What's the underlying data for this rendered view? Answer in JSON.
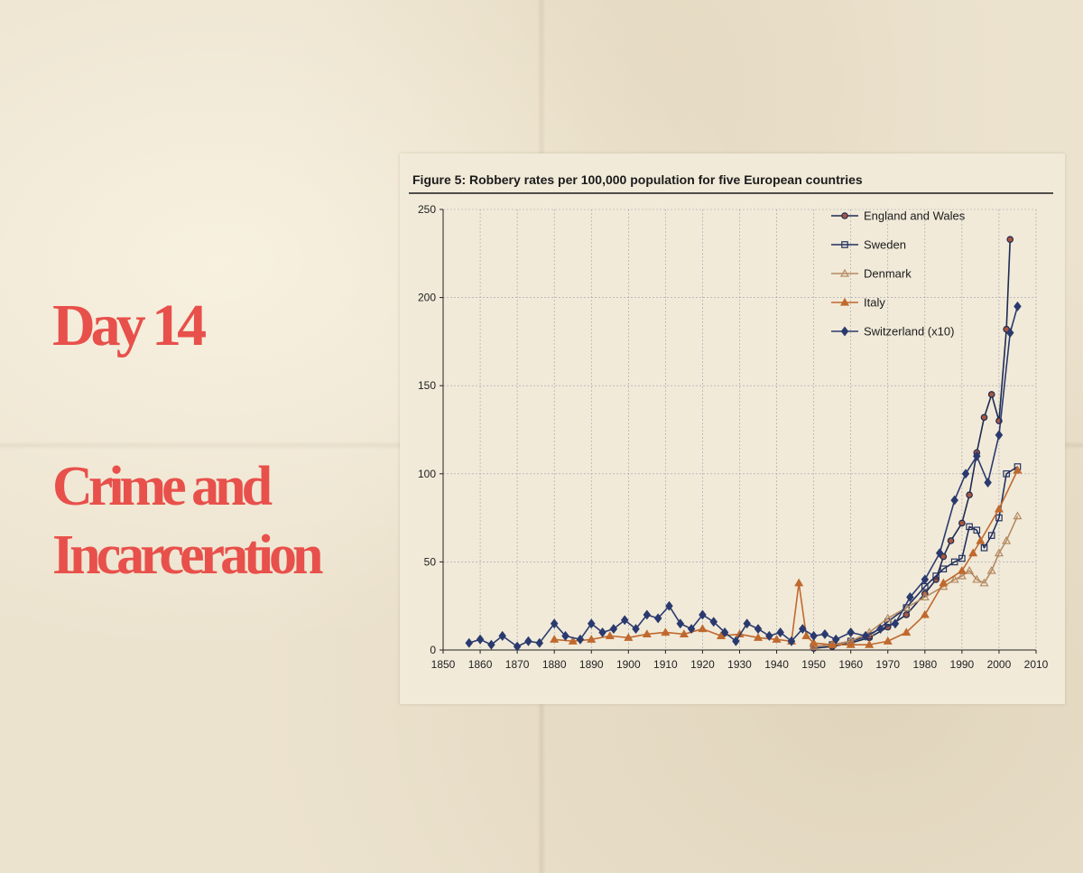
{
  "page": {
    "heading_day": "Day 14",
    "heading_topic_line1": "Crime and",
    "heading_topic_line2": "Incarceration"
  },
  "colors": {
    "heading": "#e8504b",
    "england": "#1d2a52",
    "sweden": "#23305e",
    "denmark": "#b58a62",
    "italy": "#c0692e",
    "switzerland": "#2b3a6e",
    "marker_england": "#a8563f"
  },
  "chart_data": {
    "type": "line",
    "title": "Figure 5: Robbery rates per 100,000 population for five European countries",
    "xlabel": "",
    "ylabel": "",
    "xlim": [
      1850,
      2010
    ],
    "ylim": [
      0,
      250
    ],
    "xticks": [
      1850,
      1860,
      1870,
      1880,
      1890,
      1900,
      1910,
      1920,
      1930,
      1940,
      1950,
      1960,
      1970,
      1980,
      1990,
      2000,
      2010
    ],
    "yticks": [
      0,
      50,
      100,
      150,
      200,
      250
    ],
    "grid": true,
    "legend_position": "top-right",
    "series": [
      {
        "name": "England and Wales",
        "x": [
          1950,
          1955,
          1960,
          1965,
          1970,
          1975,
          1980,
          1983,
          1985,
          1987,
          1990,
          1992,
          1994,
          1996,
          1998,
          2000,
          2002,
          2003
        ],
        "y": [
          1,
          2,
          4,
          7,
          13,
          20,
          32,
          40,
          53,
          62,
          72,
          88,
          112,
          132,
          145,
          130,
          182,
          233
        ]
      },
      {
        "name": "Sweden",
        "x": [
          1950,
          1955,
          1960,
          1965,
          1970,
          1975,
          1980,
          1983,
          1985,
          1988,
          1990,
          1992,
          1994,
          1996,
          1998,
          2000,
          2002,
          2005
        ],
        "y": [
          2,
          3,
          5,
          8,
          16,
          24,
          36,
          42,
          46,
          50,
          52,
          70,
          68,
          58,
          65,
          75,
          100,
          104
        ]
      },
      {
        "name": "Denmark",
        "x": [
          1950,
          1955,
          1960,
          1965,
          1970,
          1975,
          1980,
          1985,
          1988,
          1990,
          1992,
          1994,
          1996,
          1998,
          2000,
          2002,
          2005
        ],
        "y": [
          2,
          3,
          5,
          10,
          18,
          24,
          30,
          36,
          40,
          42,
          45,
          40,
          38,
          45,
          55,
          62,
          76
        ]
      },
      {
        "name": "Italy",
        "x": [
          1880,
          1885,
          1890,
          1895,
          1900,
          1905,
          1910,
          1915,
          1920,
          1925,
          1930,
          1935,
          1940,
          1944,
          1946,
          1948,
          1950,
          1955,
          1960,
          1965,
          1970,
          1975,
          1980,
          1985,
          1990,
          1993,
          1995,
          2000,
          2005
        ],
        "y": [
          6,
          5,
          6,
          8,
          7,
          9,
          10,
          9,
          12,
          8,
          9,
          7,
          6,
          5,
          38,
          8,
          4,
          3,
          3,
          3,
          5,
          10,
          20,
          38,
          45,
          55,
          62,
          80,
          102
        ]
      },
      {
        "name": "Switzerland (x10)",
        "x": [
          1857,
          1860,
          1863,
          1866,
          1870,
          1873,
          1876,
          1880,
          1883,
          1887,
          1890,
          1893,
          1896,
          1899,
          1902,
          1905,
          1908,
          1911,
          1914,
          1917,
          1920,
          1923,
          1926,
          1929,
          1932,
          1935,
          1938,
          1941,
          1944,
          1947,
          1950,
          1953,
          1956,
          1960,
          1964,
          1968,
          1972,
          1976,
          1980,
          1984,
          1988,
          1991,
          1994,
          1997,
          2000,
          2003,
          2005
        ],
        "y": [
          4,
          6,
          3,
          8,
          2,
          5,
          4,
          15,
          8,
          6,
          15,
          10,
          12,
          17,
          12,
          20,
          18,
          25,
          15,
          12,
          20,
          16,
          10,
          5,
          15,
          12,
          8,
          10,
          5,
          12,
          8,
          9,
          6,
          10,
          8,
          12,
          15,
          30,
          40,
          55,
          85,
          100,
          110,
          95,
          122,
          180,
          195
        ]
      }
    ]
  }
}
